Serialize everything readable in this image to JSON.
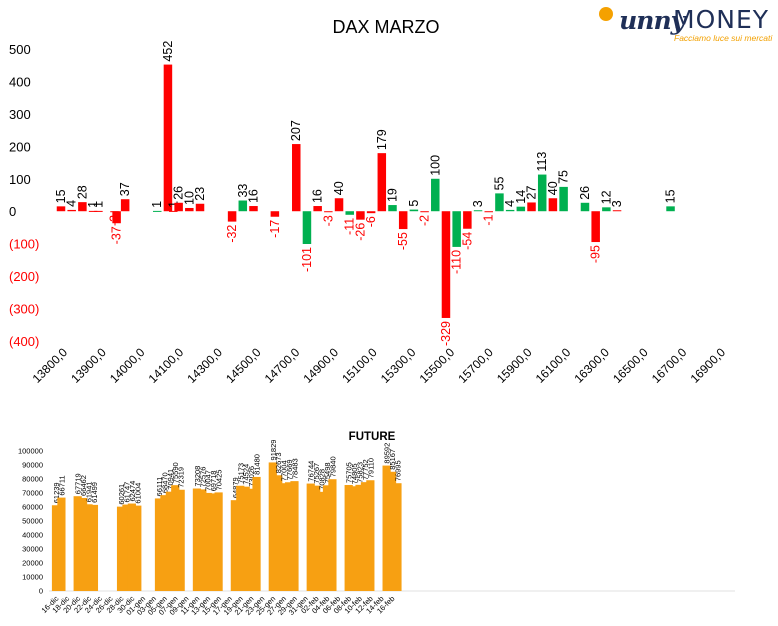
{
  "logo": {
    "name": "Sunny MONEY",
    "tagline": "Facciamo luce sui mercati"
  },
  "chart_data": [
    {
      "type": "bar",
      "title": "DAX MARZO",
      "ylim": [
        -400,
        500
      ],
      "y_ticks": [
        "500",
        "400",
        "300",
        "200",
        "100",
        "0",
        "(100)",
        "(200)",
        "(300)",
        "(400)"
      ],
      "x_tick_labels": [
        "13800,0",
        "13900,0",
        "14000,0",
        "14100,0",
        "14300,0",
        "14500,0",
        "14700,0",
        "14900,0",
        "15100,0",
        "15300,0",
        "15500,0",
        "15700,0",
        "15900,0",
        "16100,0",
        "16300,0",
        "16500,0",
        "16700,0",
        "16900,0"
      ],
      "colors": {
        "positive_red": "#ff0000",
        "green": "#00b050",
        "negative_label": "#ff0000"
      },
      "bars": [
        {
          "x": 13800,
          "value": 15,
          "color": "red"
        },
        {
          "x": 13850,
          "value": 4,
          "color": "red"
        },
        {
          "x": 13900,
          "value": 28,
          "color": "red"
        },
        {
          "x": 13950,
          "value": 1,
          "color": "red"
        },
        {
          "x": 13975,
          "value": 1,
          "color": "red"
        },
        {
          "x": 14050,
          "value": -2,
          "color": "red"
        },
        {
          "x": 14060,
          "value": -37,
          "color": "red"
        },
        {
          "x": 14100,
          "value": 37,
          "color": "red"
        },
        {
          "x": 14250,
          "value": 1,
          "color": "green"
        },
        {
          "x": 14300,
          "value": 452,
          "color": "red"
        },
        {
          "x": 14325,
          "value": 1,
          "color": "red"
        },
        {
          "x": 14350,
          "value": 26,
          "color": "red"
        },
        {
          "x": 14400,
          "value": 10,
          "color": "red"
        },
        {
          "x": 14450,
          "value": 23,
          "color": "red"
        },
        {
          "x": 14600,
          "value": -32,
          "color": "red"
        },
        {
          "x": 14650,
          "value": 33,
          "color": "green"
        },
        {
          "x": 14700,
          "value": 16,
          "color": "red"
        },
        {
          "x": 14800,
          "value": -17,
          "color": "red"
        },
        {
          "x": 14900,
          "value": 207,
          "color": "red"
        },
        {
          "x": 14950,
          "value": -101,
          "color": "green"
        },
        {
          "x": 15000,
          "value": 16,
          "color": "red"
        },
        {
          "x": 15050,
          "value": -3,
          "color": "red"
        },
        {
          "x": 15100,
          "value": 40,
          "color": "red"
        },
        {
          "x": 15150,
          "value": -11,
          "color": "green"
        },
        {
          "x": 15200,
          "value": -26,
          "color": "red"
        },
        {
          "x": 15250,
          "value": -6,
          "color": "red"
        },
        {
          "x": 15300,
          "value": 179,
          "color": "red"
        },
        {
          "x": 15350,
          "value": 19,
          "color": "green"
        },
        {
          "x": 15400,
          "value": -55,
          "color": "red"
        },
        {
          "x": 15450,
          "value": 5,
          "color": "green"
        },
        {
          "x": 15500,
          "value": -2,
          "color": "red"
        },
        {
          "x": 15550,
          "value": 100,
          "color": "green"
        },
        {
          "x": 15600,
          "value": -329,
          "color": "red"
        },
        {
          "x": 15650,
          "value": -110,
          "color": "green"
        },
        {
          "x": 15700,
          "value": -54,
          "color": "red"
        },
        {
          "x": 15750,
          "value": 3,
          "color": "green"
        },
        {
          "x": 15800,
          "value": -1,
          "color": "red"
        },
        {
          "x": 15850,
          "value": 55,
          "color": "green"
        },
        {
          "x": 15900,
          "value": 4,
          "color": "green"
        },
        {
          "x": 15950,
          "value": 14,
          "color": "green"
        },
        {
          "x": 16000,
          "value": 27,
          "color": "red"
        },
        {
          "x": 16050,
          "value": 113,
          "color": "green"
        },
        {
          "x": 16100,
          "value": 40,
          "color": "red"
        },
        {
          "x": 16150,
          "value": 75,
          "color": "green"
        },
        {
          "x": 16250,
          "value": 26,
          "color": "green"
        },
        {
          "x": 16300,
          "value": -95,
          "color": "red"
        },
        {
          "x": 16350,
          "value": 12,
          "color": "green"
        },
        {
          "x": 16400,
          "value": 3,
          "color": "red"
        },
        {
          "x": 16650,
          "value": 15,
          "color": "green"
        }
      ]
    },
    {
      "type": "bar",
      "title": "FUTURE",
      "ylim": [
        0,
        100000
      ],
      "y_ticks": [
        "100000",
        "90000",
        "80000",
        "70000",
        "60000",
        "50000",
        "40000",
        "30000",
        "20000",
        "10000",
        "0"
      ],
      "x_tick_labels": [
        "16-dic",
        "18-dic",
        "20-dic",
        "22-dic",
        "24-dic",
        "26-dic",
        "28-dic",
        "30-dic",
        "01-gen",
        "03-gen",
        "05-gen",
        "07-gen",
        "09-gen",
        "11-gen",
        "13-gen",
        "15-gen",
        "17-gen",
        "19-gen",
        "21-gen",
        "23-gen",
        "25-gen",
        "27-gen",
        "29-gen",
        "31-gen",
        "02-feb",
        "04-feb",
        "06-feb",
        "08-feb",
        "10-feb",
        "12-feb",
        "14-feb",
        "16-feb"
      ],
      "bar_color": "#f7a012",
      "bars": [
        {
          "day": 0,
          "value": 61239
        },
        {
          "day": 1,
          "value": 66711
        },
        {
          "day": 4,
          "value": 67719
        },
        {
          "day": 5,
          "value": 66462
        },
        {
          "day": 6,
          "value": 61941
        },
        {
          "day": 7,
          "value": 61499
        },
        {
          "day": 12,
          "value": 60261
        },
        {
          "day": 13,
          "value": 61747
        },
        {
          "day": 14,
          "value": 62474
        },
        {
          "day": 15,
          "value": 61004
        },
        {
          "day": 19,
          "value": 66111
        },
        {
          "day": 20,
          "value": 68470
        },
        {
          "day": 21,
          "value": 70941
        },
        {
          "day": 22,
          "value": 75590
        },
        {
          "day": 23,
          "value": 72319
        },
        {
          "day": 26,
          "value": 73208
        },
        {
          "day": 27,
          "value": 72576
        },
        {
          "day": 28,
          "value": 70047
        },
        {
          "day": 29,
          "value": 69718
        },
        {
          "day": 30,
          "value": 70425
        },
        {
          "day": 33,
          "value": 64879
        },
        {
          "day": 34,
          "value": 75173
        },
        {
          "day": 35,
          "value": 74524
        },
        {
          "day": 36,
          "value": 73026
        },
        {
          "day": 37,
          "value": 81480
        },
        {
          "day": 40,
          "value": 91829
        },
        {
          "day": 41,
          "value": 82673
        },
        {
          "day": 42,
          "value": 77004
        },
        {
          "day": 43,
          "value": 77669
        },
        {
          "day": 44,
          "value": 78483
        },
        {
          "day": 47,
          "value": 76744
        },
        {
          "day": 48,
          "value": 75267
        },
        {
          "day": 49,
          "value": 70828
        },
        {
          "day": 50,
          "value": 75498
        },
        {
          "day": 51,
          "value": 79840
        },
        {
          "day": 54,
          "value": 75705
        },
        {
          "day": 55,
          "value": 74805
        },
        {
          "day": 56,
          "value": 75823
        },
        {
          "day": 57,
          "value": 77752
        },
        {
          "day": 58,
          "value": 79110
        },
        {
          "day": 61,
          "value": 89592
        },
        {
          "day": 62,
          "value": 85167
        },
        {
          "day": 63,
          "value": 76995
        }
      ]
    }
  ]
}
